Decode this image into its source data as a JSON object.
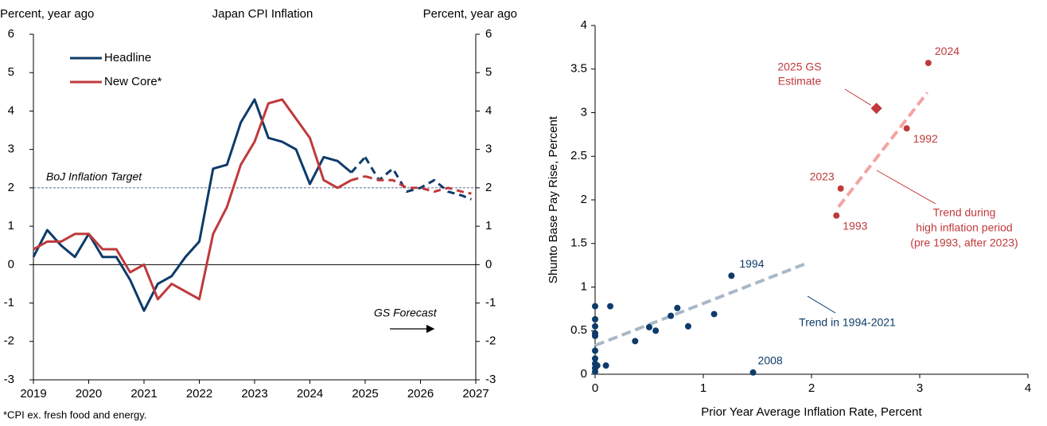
{
  "chart_data": [
    {
      "type": "line",
      "title": "Japan CPI Inflation",
      "ylabel": "Percent, year ago",
      "y2label": "Percent, year ago",
      "xlim": [
        2019,
        2027
      ],
      "xticks": [
        2019,
        2020,
        2021,
        2022,
        2023,
        2024,
        2025,
        2026,
        2027
      ],
      "ylim": [
        -3,
        6
      ],
      "yticks": [
        -3,
        -2,
        -1,
        0,
        1,
        2,
        3,
        4,
        5,
        6
      ],
      "y2lim": [
        -3,
        6
      ],
      "y2ticks": [
        -3,
        -2,
        -1,
        0,
        1,
        2,
        3,
        4,
        5,
        6
      ],
      "grid": false,
      "forecast_start": 2024.75,
      "target": {
        "label": "BoJ Inflation Target",
        "value": 2
      },
      "forecast_label": "GS Forecast",
      "footnote": "*CPI ex. fresh food and energy.",
      "x": [
        2019,
        2019.25,
        2019.5,
        2019.75,
        2020,
        2020.25,
        2020.5,
        2020.75,
        2021,
        2021.25,
        2021.5,
        2021.75,
        2022,
        2022.25,
        2022.5,
        2022.75,
        2023,
        2023.25,
        2023.5,
        2023.75,
        2024,
        2024.25,
        2024.5,
        2024.75,
        2025,
        2025.25,
        2025.5,
        2025.75,
        2026,
        2026.25,
        2026.5,
        2026.75,
        2026.92
      ],
      "series": [
        {
          "name": "Headline",
          "color": "#0d3b6a",
          "values": [
            0.2,
            0.9,
            0.5,
            0.2,
            0.8,
            0.2,
            0.2,
            -0.4,
            -1.2,
            -0.5,
            -0.3,
            0.2,
            0.6,
            2.5,
            2.6,
            3.7,
            4.3,
            3.3,
            3.2,
            3.0,
            2.1,
            2.8,
            2.7,
            2.4,
            2.8,
            2.2,
            2.5,
            1.9,
            2.0,
            2.2,
            1.9,
            1.8,
            1.7
          ]
        },
        {
          "name": "New Core*",
          "color": "#c0393b",
          "values": [
            0.4,
            0.6,
            0.6,
            0.8,
            0.8,
            0.4,
            0.4,
            -0.2,
            0.0,
            -0.9,
            -0.5,
            -0.7,
            -0.9,
            0.8,
            1.5,
            2.6,
            3.2,
            4.2,
            4.3,
            3.8,
            3.3,
            2.2,
            2.0,
            2.2,
            2.3,
            2.2,
            2.2,
            2.0,
            2.0,
            1.9,
            2.0,
            1.9,
            1.85
          ]
        }
      ]
    },
    {
      "type": "scatter",
      "xlabel": "Prior Year Average Inflation Rate, Percent",
      "ylabel": "Shunto Base Pay Rise, Percent",
      "xlim": [
        0,
        4
      ],
      "xticks": [
        0,
        1,
        2,
        3,
        4
      ],
      "ylim": [
        0,
        4
      ],
      "yticks": [
        0,
        0.5,
        1,
        1.5,
        2,
        2.5,
        3,
        3.5,
        4
      ],
      "series": [
        {
          "color": "#0d3b6a",
          "x": [
            0,
            0,
            0,
            0,
            0,
            0,
            0,
            0,
            0,
            0,
            0.02,
            0.1,
            0.14,
            0.37,
            0.5,
            0.56,
            0.7,
            0.76,
            0.86,
            1.1,
            1.26,
            1.46
          ],
          "values": [
            0.78,
            0.63,
            0.55,
            0.47,
            0.44,
            0.27,
            0.18,
            0.12,
            0.07,
            0.03,
            0.1,
            0.1,
            0.78,
            0.38,
            0.54,
            0.5,
            0.67,
            0.76,
            0.55,
            0.69,
            1.13,
            0.02
          ],
          "point_labels": [
            null,
            null,
            null,
            null,
            null,
            null,
            null,
            null,
            null,
            null,
            null,
            null,
            null,
            null,
            null,
            null,
            null,
            null,
            null,
            null,
            "1994",
            "2008"
          ]
        },
        {
          "color": "#c0393b",
          "x": [
            2.23,
            2.27,
            2.88,
            3.08
          ],
          "values": [
            1.82,
            2.13,
            2.82,
            3.57
          ],
          "point_labels": [
            "1993",
            "2023",
            "1992",
            "2024"
          ]
        }
      ],
      "estimate": {
        "label": [
          "2025 GS",
          "Estimate"
        ],
        "x": 2.6,
        "y": 3.05,
        "color": "#c0393b"
      },
      "trends": [
        {
          "label": [
            "Trend in 1994-2021"
          ],
          "color": "#a9b8c8",
          "text_color": "#0d3b6a",
          "x": [
            0,
            1.95
          ],
          "values": [
            0.33,
            1.27
          ]
        },
        {
          "label": [
            "Trend during",
            "high inflation period",
            "(pre 1993, after 2023)"
          ],
          "color": "#f4a3a3",
          "text_color": "#c0393b",
          "x": [
            2.25,
            3.07
          ],
          "values": [
            1.92,
            3.23
          ]
        }
      ]
    }
  ]
}
